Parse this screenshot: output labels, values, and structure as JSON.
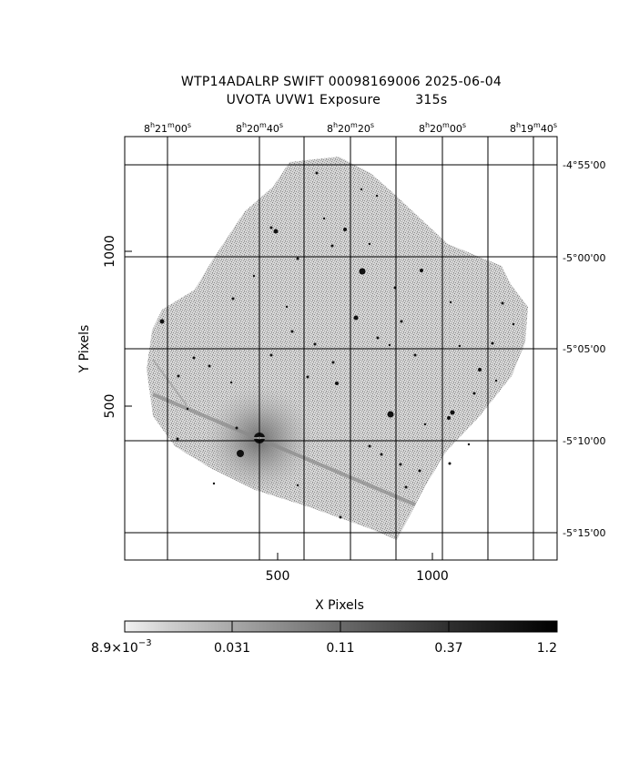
{
  "title": {
    "line1": "WTP14ADALRP SWIFT 00098169006 2025-06-04",
    "line2": "UVOTA UVW1 Exposure        315s"
  },
  "axes": {
    "x_label": "X Pixels",
    "y_label": "Y Pixels",
    "x_ticks": [
      "500",
      "1000"
    ],
    "y_ticks": [
      "500",
      "1000"
    ],
    "ra_ticks": [
      {
        "h": "8",
        "m": "21",
        "s": "00"
      },
      {
        "h": "8",
        "m": "20",
        "s": "40"
      },
      {
        "h": "8",
        "m": "20",
        "s": "20"
      },
      {
        "h": "8",
        "m": "20",
        "s": "00"
      },
      {
        "h": "8",
        "m": "19",
        "s": "40"
      }
    ],
    "dec_ticks": [
      "-4°55'00",
      "-5°00'00",
      "-5°05'00",
      "-5°10'00",
      "-5°15'00"
    ]
  },
  "colorbar": {
    "labels": [
      "8.9×10",
      "0.031",
      "0.11",
      "0.37",
      "1.2"
    ],
    "first_exponent": "−3"
  },
  "colors": {
    "background": "#ffffff",
    "sky": "#bdbdbd",
    "stars": "#000000"
  }
}
